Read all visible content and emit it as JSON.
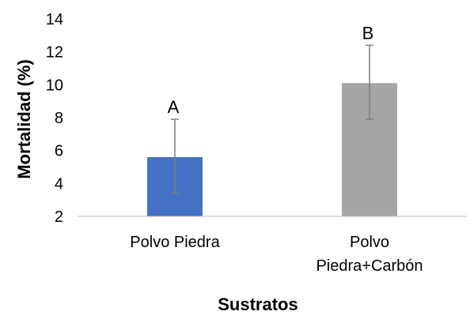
{
  "chart_data": {
    "type": "bar",
    "title": "",
    "xlabel": "Sustratos",
    "ylabel": "Mortalidad (%)",
    "ylim": [
      2,
      14
    ],
    "yticks": [
      2,
      4,
      6,
      8,
      10,
      12,
      14
    ],
    "categories": [
      [
        "Polvo Piedra"
      ],
      [
        "Polvo",
        "Piedra+Carbón"
      ]
    ],
    "values": [
      5.6,
      10.1
    ],
    "error_low": [
      3.4,
      7.9
    ],
    "error_high": [
      7.9,
      12.4
    ],
    "significance_labels": [
      "A",
      "B"
    ],
    "colors": [
      "#4472C4",
      "#A5A5A5"
    ],
    "error_bar_color": "#7f7f7f",
    "grid": false
  }
}
